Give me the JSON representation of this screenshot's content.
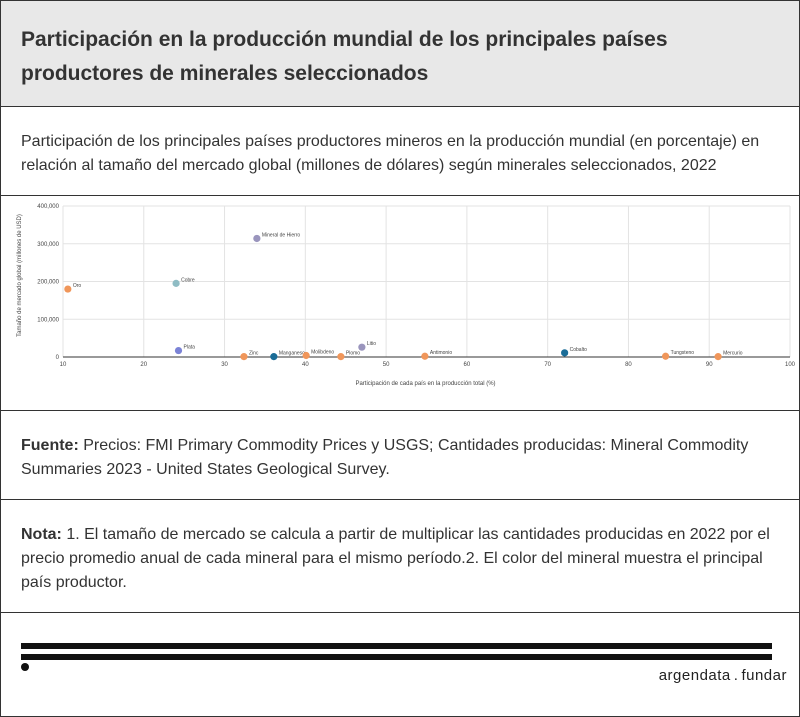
{
  "header": {
    "title": "Participación en la producción mundial de los principales países productores de minerales seleccionados"
  },
  "subtitle": "Participación de los principales países productores mineros en la producción mundial (en porcentaje) en relación al tamaño del mercado global (millones de dólares) según minerales seleccionados, 2022",
  "source": {
    "label": "Fuente:",
    "text": " Precios: FMI Primary Commodity Prices y USGS; Cantidades producidas: Mineral Commodity Summaries 2023 - United States Geological Survey."
  },
  "note": {
    "label": "Nota:",
    "text": " 1. El tamaño de mercado se calcula a partir de multiplicar las cantidades producidas en 2022 por el precio promedio anual de cada mineral para el mismo período.2. El color del mineral muestra el principal país productor."
  },
  "footer": {
    "brand_left": "argendata",
    "brand_sep": ".",
    "brand_right": "fundar"
  },
  "chart_data": {
    "type": "scatter",
    "xlabel": "Participación de cada país en la producción total (%)",
    "ylabel": "Tamaño de mercado global (millones de USD)",
    "xlim": [
      10,
      100
    ],
    "ylim": [
      0,
      400000
    ],
    "x_ticks": [
      "10",
      "20",
      "30",
      "40",
      "50",
      "60",
      "70",
      "80",
      "90",
      "100"
    ],
    "y_ticks": [
      "0",
      "100,000",
      "200,000",
      "300,000",
      "400,000"
    ],
    "grid": true,
    "points": [
      {
        "name": "Mineral de Hierro",
        "x": 34,
        "y": 314000,
        "color": "#9a95bd"
      },
      {
        "name": "Cobre",
        "x": 24,
        "y": 195000,
        "color": "#8fbcc4"
      },
      {
        "name": "Oro",
        "x": 10.6,
        "y": 180000,
        "color": "#f0965a"
      },
      {
        "name": "Plata",
        "x": 24.3,
        "y": 17000,
        "color": "#7b83d6"
      },
      {
        "name": "Zinc",
        "x": 32.4,
        "y": 1000,
        "color": "#f0965a"
      },
      {
        "name": "Manganeso",
        "x": 36.1,
        "y": 1000,
        "color": "#1a6c97"
      },
      {
        "name": "Molibdeno",
        "x": 40.1,
        "y": 4000,
        "color": "#f0965a"
      },
      {
        "name": "Plomo",
        "x": 44.4,
        "y": 1000,
        "color": "#f0965a"
      },
      {
        "name": "Litio",
        "x": 47,
        "y": 26000,
        "color": "#9a95bd"
      },
      {
        "name": "Antimonio",
        "x": 54.8,
        "y": 2000,
        "color": "#f0965a"
      },
      {
        "name": "Cobalto",
        "x": 72.1,
        "y": 11000,
        "color": "#1a6c97"
      },
      {
        "name": "Tungsteno",
        "x": 84.6,
        "y": 2000,
        "color": "#f0965a"
      },
      {
        "name": "Mercurio",
        "x": 91.1,
        "y": 1000,
        "color": "#f0965a"
      }
    ]
  }
}
